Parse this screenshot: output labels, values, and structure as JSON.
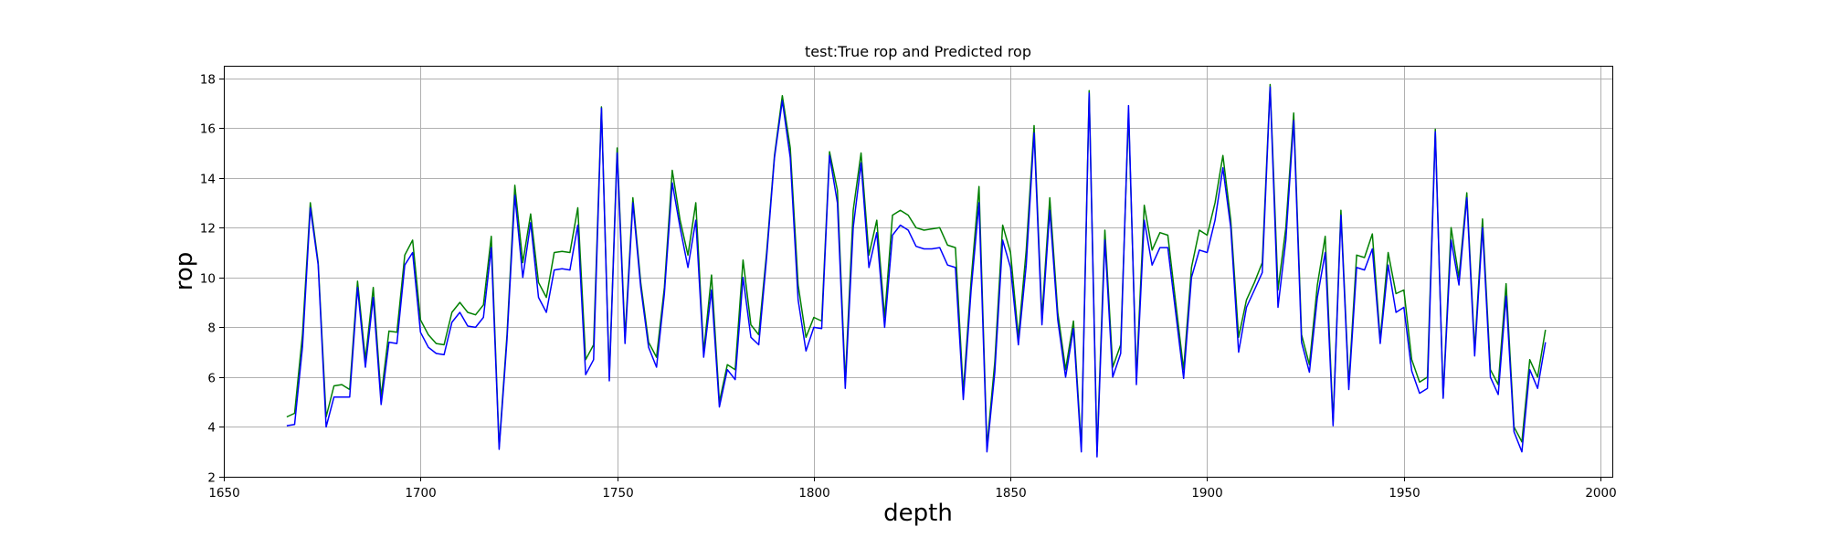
{
  "chart_data": {
    "type": "line",
    "title": "test:True rop and Predicted rop",
    "xlabel": "depth",
    "ylabel": "rop",
    "xlim": [
      1650,
      2003
    ],
    "ylim": [
      2,
      18.5
    ],
    "xticks": [
      1650,
      1700,
      1750,
      1800,
      1850,
      1900,
      1950,
      2000
    ],
    "yticks": [
      2,
      4,
      6,
      8,
      10,
      12,
      14,
      16,
      18
    ],
    "grid": true,
    "x": [
      1666,
      1668,
      1670,
      1672,
      1674,
      1676,
      1678,
      1680,
      1682,
      1684,
      1686,
      1688,
      1690,
      1692,
      1694,
      1696,
      1698,
      1700,
      1702,
      1704,
      1706,
      1708,
      1710,
      1712,
      1714,
      1716,
      1718,
      1720,
      1722,
      1724,
      1726,
      1728,
      1730,
      1732,
      1734,
      1736,
      1738,
      1740,
      1742,
      1744,
      1746,
      1748,
      1750,
      1752,
      1754,
      1756,
      1758,
      1760,
      1762,
      1764,
      1766,
      1768,
      1770,
      1772,
      1774,
      1776,
      1778,
      1780,
      1782,
      1784,
      1786,
      1788,
      1790,
      1792,
      1794,
      1796,
      1798,
      1800,
      1802,
      1804,
      1806,
      1808,
      1810,
      1812,
      1814,
      1816,
      1818,
      1820,
      1822,
      1824,
      1826,
      1828,
      1830,
      1832,
      1834,
      1836,
      1838,
      1840,
      1842,
      1844,
      1846,
      1848,
      1850,
      1852,
      1854,
      1856,
      1858,
      1860,
      1862,
      1864,
      1866,
      1868,
      1870,
      1872,
      1874,
      1876,
      1878,
      1880,
      1882,
      1884,
      1886,
      1888,
      1890,
      1892,
      1894,
      1896,
      1898,
      1900,
      1902,
      1904,
      1906,
      1908,
      1910,
      1912,
      1914,
      1916,
      1918,
      1920,
      1922,
      1924,
      1926,
      1928,
      1930,
      1932,
      1934,
      1936,
      1938,
      1940,
      1942,
      1944,
      1946,
      1948,
      1950,
      1952,
      1954,
      1956,
      1958,
      1960,
      1962,
      1964,
      1966,
      1968,
      1970,
      1972,
      1974,
      1976,
      1978,
      1980,
      1982,
      1984,
      1986
    ],
    "series": [
      {
        "color": "#008000",
        "values": [
          4.4,
          4.55,
          7.7,
          13.0,
          10.6,
          4.4,
          5.65,
          5.7,
          5.5,
          9.85,
          6.7,
          9.6,
          5.2,
          7.85,
          7.8,
          10.9,
          11.5,
          8.3,
          7.7,
          7.35,
          7.3,
          8.6,
          9.0,
          8.6,
          8.5,
          8.9,
          11.65,
          3.2,
          7.7,
          13.7,
          10.6,
          12.55,
          9.8,
          9.2,
          11.0,
          11.05,
          11.0,
          12.8,
          6.7,
          7.3,
          16.85,
          6.0,
          15.2,
          7.6,
          13.2,
          9.8,
          7.4,
          6.8,
          9.6,
          14.3,
          12.3,
          10.9,
          13.0,
          7.0,
          10.1,
          5.0,
          6.5,
          6.3,
          10.7,
          8.1,
          7.7,
          11.0,
          14.9,
          17.3,
          15.2,
          9.7,
          7.6,
          8.4,
          8.25,
          15.05,
          13.5,
          5.8,
          12.7,
          15.0,
          10.9,
          12.3,
          8.4,
          12.5,
          12.7,
          12.5,
          12.0,
          11.9,
          11.95,
          12.0,
          11.3,
          11.2,
          5.4,
          9.9,
          13.65,
          3.2,
          6.6,
          12.1,
          11.0,
          7.6,
          11.1,
          16.1,
          8.4,
          13.2,
          8.6,
          6.3,
          8.25,
          3.2,
          17.5,
          3.0,
          11.9,
          6.4,
          7.3,
          16.6,
          6.0,
          12.9,
          11.1,
          11.8,
          11.7,
          9.0,
          6.3,
          10.4,
          11.9,
          11.7,
          13.0,
          14.9,
          12.3,
          7.6,
          9.1,
          9.8,
          10.6,
          17.75,
          9.5,
          12.0,
          16.6,
          7.7,
          6.5,
          9.7,
          11.65,
          4.2,
          12.7,
          5.7,
          10.9,
          10.8,
          11.75,
          7.5,
          11.0,
          9.35,
          9.5,
          6.7,
          5.8,
          6.0,
          15.95,
          5.2,
          12.0,
          10.0,
          13.4,
          7.1,
          12.35,
          6.3,
          5.7,
          9.75,
          4.0,
          3.4,
          6.7,
          6.0,
          7.9
        ]
      },
      {
        "color": "#0000ff",
        "values": [
          4.05,
          4.1,
          7.2,
          12.8,
          10.5,
          4.0,
          5.2,
          5.2,
          5.2,
          9.6,
          6.4,
          9.2,
          4.9,
          7.4,
          7.35,
          10.5,
          11.0,
          7.8,
          7.2,
          6.95,
          6.9,
          8.2,
          8.6,
          8.05,
          8.0,
          8.4,
          11.2,
          3.1,
          7.5,
          13.3,
          10.0,
          12.2,
          9.2,
          8.6,
          10.3,
          10.35,
          10.3,
          12.1,
          6.1,
          6.7,
          16.8,
          5.85,
          15.0,
          7.35,
          13.0,
          9.6,
          7.2,
          6.4,
          9.35,
          13.8,
          12.0,
          10.4,
          12.3,
          6.8,
          9.5,
          4.8,
          6.3,
          5.9,
          10.0,
          7.6,
          7.3,
          10.8,
          14.8,
          17.1,
          14.8,
          9.1,
          7.05,
          8.0,
          7.95,
          14.9,
          13.0,
          5.55,
          12.0,
          14.6,
          10.4,
          11.8,
          8.0,
          11.7,
          12.1,
          11.9,
          11.25,
          11.15,
          11.15,
          11.2,
          10.5,
          10.4,
          5.1,
          9.5,
          13.0,
          3.0,
          6.2,
          11.5,
          10.4,
          7.3,
          10.5,
          15.8,
          8.1,
          12.7,
          8.3,
          6.0,
          7.95,
          3.0,
          17.4,
          2.8,
          11.5,
          6.0,
          6.95,
          16.9,
          5.7,
          12.3,
          10.5,
          11.2,
          11.2,
          8.6,
          5.95,
          10.0,
          11.1,
          11.0,
          12.3,
          14.4,
          12.0,
          7.0,
          8.8,
          9.5,
          10.2,
          17.65,
          8.8,
          11.5,
          16.3,
          7.4,
          6.2,
          9.2,
          11.0,
          4.05,
          12.5,
          5.5,
          10.4,
          10.3,
          11.15,
          7.35,
          10.5,
          8.6,
          8.8,
          6.25,
          5.35,
          5.55,
          15.85,
          5.15,
          11.5,
          9.7,
          13.2,
          6.85,
          12.0,
          6.0,
          5.3,
          9.25,
          3.8,
          3.0,
          6.3,
          5.55,
          7.4
        ]
      }
    ]
  }
}
